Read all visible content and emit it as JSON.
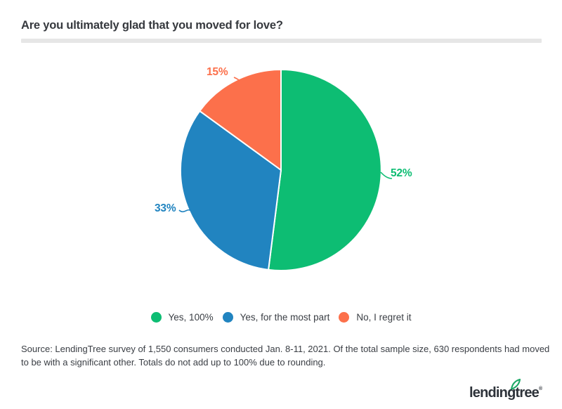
{
  "chart_data": {
    "type": "pie",
    "title": "Are you ultimately glad that you moved for love?",
    "labels": [
      "Yes, 100%",
      "Yes, for the most part",
      "No, I regret it"
    ],
    "values": [
      52,
      33,
      15
    ],
    "pct_labels": [
      "52%",
      "33%",
      "15%"
    ],
    "colors": [
      "#0dbd73",
      "#2184c0",
      "#fc704b"
    ],
    "start_angle_deg": 0,
    "direction": "clockwise",
    "legend_position": "bottom"
  },
  "source": {
    "line1": "Source: LendingTree survey of 1,550 consumers conducted Jan. 8-11, 2021. Of the total sample size, 630 respondents had moved",
    "line2": "to be with a significant other. Totals do not add up to 100% due to rounding."
  },
  "logo": {
    "text": "lendingtree",
    "registered": "®"
  }
}
